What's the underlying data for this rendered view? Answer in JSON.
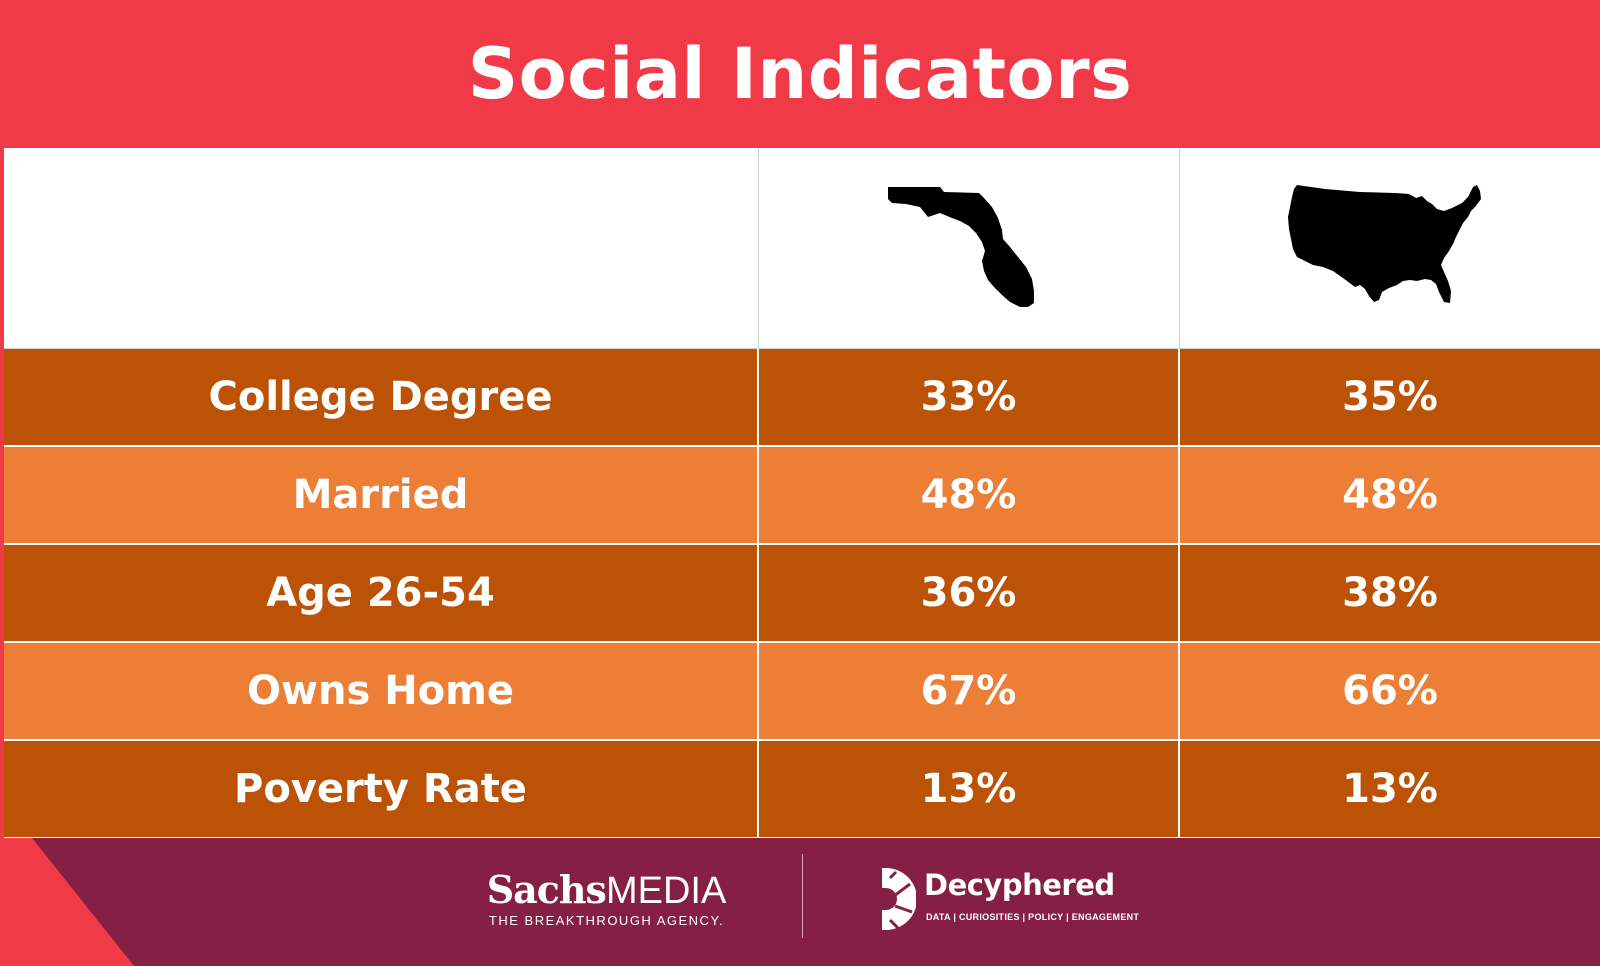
{
  "chart_data": {
    "type": "table",
    "title": "Social Indicators",
    "columns": [
      "",
      "Florida",
      "United States"
    ],
    "rows": [
      {
        "label": "College Degree",
        "florida": "33%",
        "us": "35%"
      },
      {
        "label": "Married",
        "florida": "48%",
        "us": "48%"
      },
      {
        "label": "Age 26-54",
        "florida": "36%",
        "us": "38%"
      },
      {
        "label": "Owns Home",
        "florida": "67%",
        "us": "66%"
      },
      {
        "label": "Poverty Rate",
        "florida": "13%",
        "us": "13%"
      }
    ]
  },
  "footer": {
    "sachs_bold": "Sachs",
    "sachs_light": "MEDIA",
    "sachs_tagline": "THE BREAKTHROUGH AGENCY.",
    "decyphered_name": "Decyphered",
    "decyphered_tagline": "DATA | CURIOSITIES | POLICY | ENGAGEMENT"
  },
  "colors": {
    "background": "#f03a47",
    "row_dark": "#bb5205",
    "row_light": "#ed7e36",
    "footer": "#852044"
  },
  "icons": {
    "florida": "florida-silhouette-icon",
    "usa": "usa-silhouette-icon"
  }
}
